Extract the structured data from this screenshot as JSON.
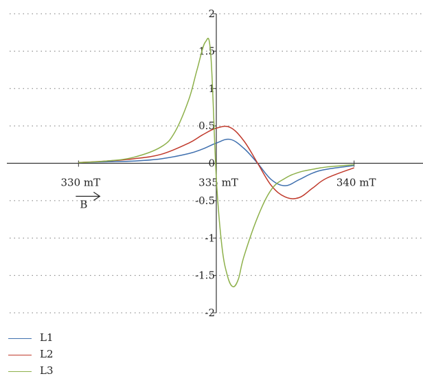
{
  "chart_data": {
    "type": "line",
    "xlabel": "",
    "ylabel": "",
    "xlim": [
      327.5,
      342.5
    ],
    "ylim": [
      -2,
      2
    ],
    "x_ticks": [
      {
        "value": 330,
        "label": "330 mT"
      },
      {
        "value": 335,
        "label": "335 mT"
      },
      {
        "value": 340,
        "label": "340 mT"
      }
    ],
    "y_ticks": [
      {
        "value": 2,
        "label": "2"
      },
      {
        "value": 1.5,
        "label": "1.5"
      },
      {
        "value": 1,
        "label": "1"
      },
      {
        "value": 0.5,
        "label": "0.5"
      },
      {
        "value": 0,
        "label": "0"
      },
      {
        "value": -0.5,
        "label": "-0.5"
      },
      {
        "value": -1,
        "label": "-1"
      },
      {
        "value": -1.5,
        "label": "-1.5"
      },
      {
        "value": -2,
        "label": "-2"
      }
    ],
    "grid": true,
    "legend_position": "bottom-left",
    "annotation": {
      "text": "B",
      "arrow": "right"
    },
    "series": [
      {
        "name": "L1",
        "color": "#3e6fae",
        "x": [
          330,
          331,
          332,
          333,
          334,
          334.5,
          335,
          335.5,
          336,
          336.5,
          337,
          337.5,
          338,
          338.5,
          339,
          340
        ],
        "values": [
          0.01,
          0.02,
          0.03,
          0.06,
          0.13,
          0.19,
          0.27,
          0.32,
          0.2,
          0,
          -0.22,
          -0.3,
          -0.22,
          -0.13,
          -0.08,
          -0.03
        ]
      },
      {
        "name": "L2",
        "color": "#c0392b",
        "x": [
          330,
          331,
          332,
          333,
          334,
          334.5,
          335,
          335.5,
          336,
          336.5,
          337,
          337.5,
          338,
          338.5,
          339,
          340
        ],
        "values": [
          0.01,
          0.03,
          0.06,
          0.12,
          0.27,
          0.38,
          0.47,
          0.48,
          0.3,
          0,
          -0.3,
          -0.45,
          -0.46,
          -0.33,
          -0.2,
          -0.06
        ]
      },
      {
        "name": "L3",
        "color": "#8db04a",
        "x": [
          330,
          331,
          332,
          333,
          333.5,
          334,
          334.3,
          334.6,
          334.8,
          335,
          335.2,
          335.4,
          335.6,
          335.8,
          336,
          336.5,
          337,
          337.5,
          338,
          338.5,
          339,
          340
        ],
        "values": [
          0.01,
          0.03,
          0.08,
          0.22,
          0.42,
          0.85,
          1.25,
          1.62,
          1.45,
          -0.2,
          -1.1,
          -1.5,
          -1.65,
          -1.55,
          -1.25,
          -0.72,
          -0.35,
          -0.2,
          -0.12,
          -0.08,
          -0.05,
          -0.02
        ]
      }
    ]
  }
}
